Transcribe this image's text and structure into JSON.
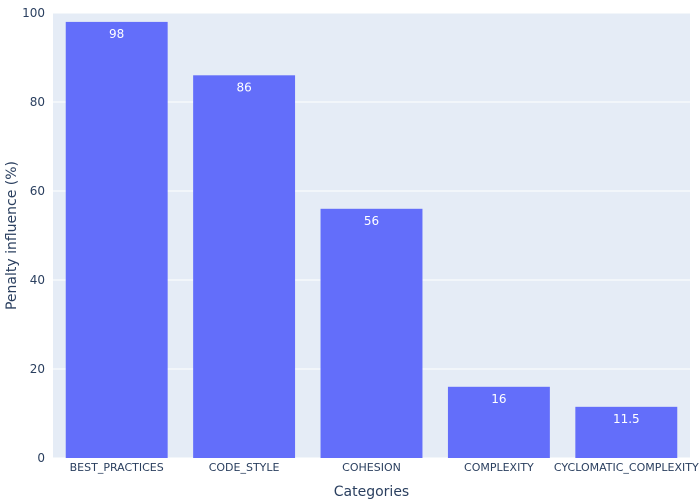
{
  "chart_data": {
    "type": "bar",
    "categories": [
      "BEST_PRACTICES",
      "CODE_STYLE",
      "COHESION",
      "COMPLEXITY",
      "CYCLOMATIC_COMPLEXITY"
    ],
    "values": [
      98,
      86,
      56,
      16,
      11.5
    ],
    "data_labels": [
      "98",
      "86",
      "56",
      "16",
      "11.5"
    ],
    "title": "",
    "xlabel": "Categories",
    "ylabel": "Penalty influence (%)",
    "ylim": [
      0,
      100
    ],
    "yticks": [
      0,
      20,
      40,
      60,
      80,
      100
    ],
    "grid": true,
    "legend": "none",
    "colors": {
      "bar": "#636efa",
      "plot_background": "#e5ecf6",
      "gridline": "#ffffff",
      "text": "#2a3f5f",
      "data_label": "#ffffff"
    }
  }
}
